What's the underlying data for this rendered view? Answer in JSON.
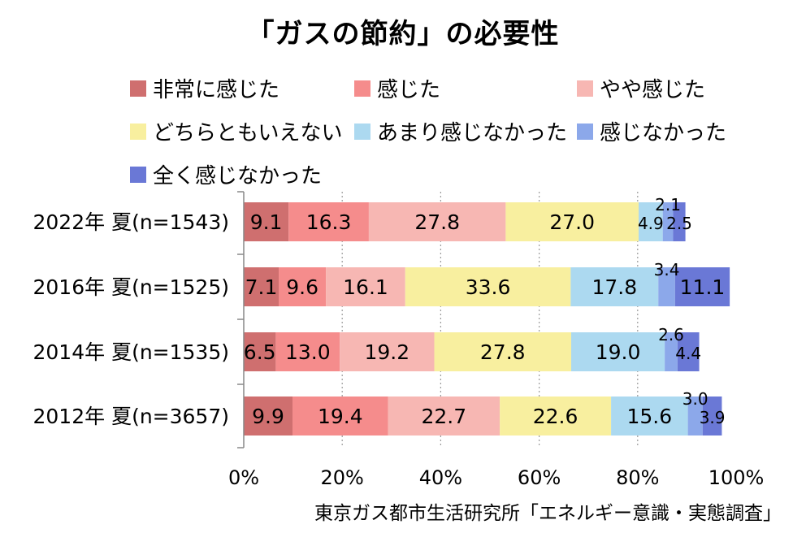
{
  "chart_data": {
    "type": "bar",
    "orientation": "horizontal",
    "stacked": true,
    "title": "「ガスの節約」の必要性",
    "categories": [
      "2022年 夏(n=1543)",
      "2016年 夏(n=1525)",
      "2014年 夏(n=1535)",
      "2012年 夏(n=3657)"
    ],
    "series": [
      {
        "name": "非常に感じた",
        "color": "#cf6f6f",
        "values": [
          9.1,
          7.1,
          6.5,
          9.9
        ]
      },
      {
        "name": "感じた",
        "color": "#f58c8c",
        "values": [
          16.3,
          9.6,
          13.0,
          19.4
        ]
      },
      {
        "name": "やや感じた",
        "color": "#f7b7b3",
        "values": [
          27.8,
          16.1,
          19.2,
          22.7
        ]
      },
      {
        "name": "どちらともいえない",
        "color": "#f8ef9f",
        "values": [
          27.0,
          33.6,
          27.8,
          22.6
        ]
      },
      {
        "name": "あまり感じなかった",
        "color": "#acd9f0",
        "values": [
          4.9,
          17.8,
          19.0,
          15.6
        ]
      },
      {
        "name": "感じなかった",
        "color": "#8ca8ea",
        "values": [
          2.1,
          3.4,
          2.6,
          3.0
        ]
      },
      {
        "name": "全く感じなかった",
        "color": "#6a78d6",
        "values": [
          2.5,
          11.1,
          4.4,
          3.9
        ]
      }
    ],
    "value_labels": [
      [
        "9.1",
        "16.3",
        "27.8",
        "27.0",
        "4.9",
        "2.1",
        "2.5"
      ],
      [
        "7.1",
        "9.6",
        "16.1",
        "33.6",
        "17.8",
        "3.4",
        "11.1"
      ],
      [
        "6.5",
        "13.0",
        "19.2",
        "27.8",
        "19.0",
        "2.6",
        "4.4"
      ],
      [
        "9.9",
        "19.4",
        "22.7",
        "22.6",
        "15.6",
        "3.0",
        "3.9"
      ]
    ],
    "xlim": [
      0,
      100
    ],
    "x_ticks": [
      "0%",
      "20%",
      "40%",
      "60%",
      "80%",
      "100%"
    ],
    "grid": "vertical dotted",
    "legend_position": "top"
  },
  "source": "東京ガス都市生活研究所「エネルギー意識・実態調査」"
}
